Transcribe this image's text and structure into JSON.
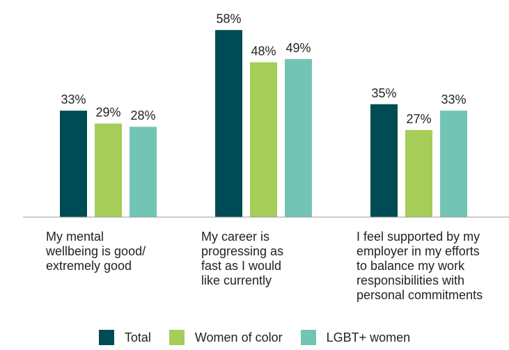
{
  "chart_data": {
    "type": "bar",
    "categories": [
      "My mental wellbeing is good/ extremely good",
      "My career is progressing as fast as I would like currently",
      "I feel supported by my employer in my efforts to balance my work responsibilities with personal commitments"
    ],
    "category_lines": [
      [
        "My mental",
        "wellbeing is good/",
        "extremely good"
      ],
      [
        "My career is",
        "progressing as",
        "fast as I would",
        "like currently"
      ],
      [
        "I feel supported by my",
        "employer in my efforts",
        "to balance my work",
        "responsibilities with",
        "personal commitments"
      ]
    ],
    "series": [
      {
        "name": "Total",
        "color": "#004c54",
        "values": [
          33,
          58,
          35
        ]
      },
      {
        "name": "Women of color",
        "color": "#a5cd58",
        "values": [
          29,
          48,
          27
        ]
      },
      {
        "name": "LGBT+ women",
        "color": "#72c4b5",
        "values": [
          28,
          49,
          33
        ]
      }
    ],
    "value_suffix": "%",
    "ylim": [
      0,
      60
    ],
    "grid": false,
    "legend_position": "bottom"
  }
}
